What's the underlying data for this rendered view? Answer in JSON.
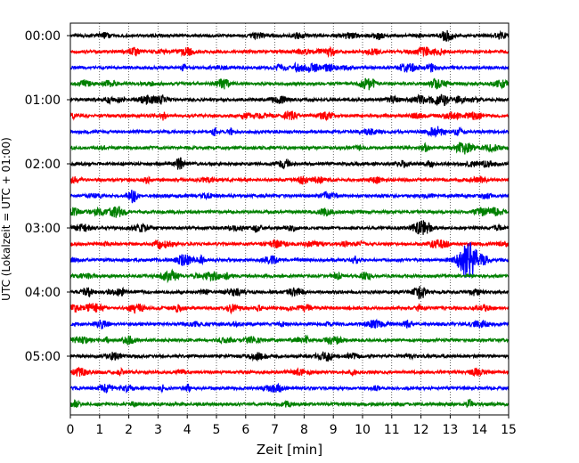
{
  "chart_data": {
    "type": "line",
    "title": "",
    "xlabel": "Zeit  [min]",
    "ylabel": "UTC (Lokalzeit = UTC + 01:00)",
    "xlim": [
      0,
      15
    ],
    "x_ticks": [
      "0",
      "1",
      "2",
      "3",
      "4",
      "5",
      "6",
      "7",
      "8",
      "9",
      "10",
      "11",
      "12",
      "13",
      "14",
      "15"
    ],
    "y_ticks": [
      "00:00",
      "01:00",
      "02:00",
      "03:00",
      "04:00",
      "05:00"
    ],
    "trace_interval_min": 15,
    "trace_colors": [
      "#000000",
      "#ff0000",
      "#0000ff",
      "#008000"
    ],
    "grid": "vertical dotted lines at each minute",
    "legend": "none",
    "traces": [
      {
        "start": "00:00"
      },
      {
        "start": "00:15"
      },
      {
        "start": "00:30"
      },
      {
        "start": "00:45"
      },
      {
        "start": "01:00"
      },
      {
        "start": "01:15"
      },
      {
        "start": "01:30"
      },
      {
        "start": "01:45"
      },
      {
        "start": "02:00"
      },
      {
        "start": "02:15"
      },
      {
        "start": "02:30"
      },
      {
        "start": "02:45"
      },
      {
        "start": "03:00"
      },
      {
        "start": "03:15"
      },
      {
        "start": "03:30",
        "event_min": 13.6
      },
      {
        "start": "03:45"
      },
      {
        "start": "04:00"
      },
      {
        "start": "04:15"
      },
      {
        "start": "04:30"
      },
      {
        "start": "04:45"
      },
      {
        "start": "05:00"
      },
      {
        "start": "05:15"
      },
      {
        "start": "05:30"
      },
      {
        "start": "05:45"
      }
    ]
  }
}
